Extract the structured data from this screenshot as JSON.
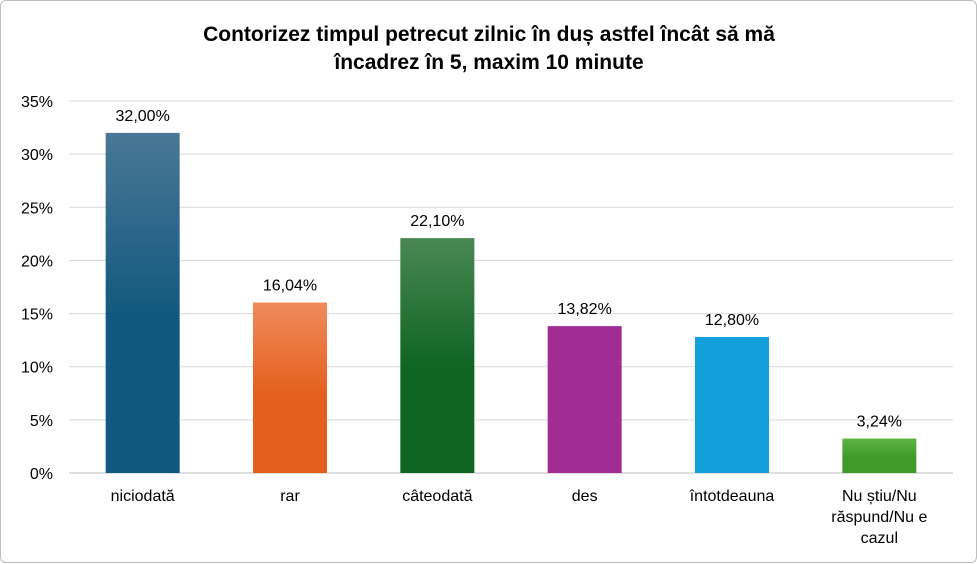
{
  "chart_data": {
    "type": "bar",
    "title_lines": [
      "Contorizez timpul petrecut zilnic în duș astfel încât să mă",
      "încadrez în 5, maxim  10 minute"
    ],
    "categories": [
      [
        "niciodată"
      ],
      [
        "rar"
      ],
      [
        "câteodată"
      ],
      [
        "des"
      ],
      [
        "întotdeauna"
      ],
      [
        "Nu știu/Nu",
        "răspund/Nu e",
        "cazul"
      ]
    ],
    "values": [
      32.0,
      16.04,
      22.1,
      13.82,
      12.8,
      3.24
    ],
    "data_labels": [
      "32,00%",
      "16,04%",
      "22,10%",
      "13,82%",
      "12,80%",
      "3,24%"
    ],
    "colors": [
      [
        "#4a7796",
        "#10587e"
      ],
      [
        "#f08a5c",
        "#e45f1c"
      ],
      [
        "#4a8754",
        "#0f6522"
      ],
      [
        "#a12c94",
        "#a12c94"
      ],
      [
        "#139fd9",
        "#139fd9"
      ],
      [
        "#5fb445",
        "#3f9a2a"
      ]
    ],
    "ylim": [
      0,
      35
    ],
    "y_ticks": [
      0,
      5,
      10,
      15,
      20,
      25,
      30,
      35
    ],
    "y_tick_labels": [
      "0%",
      "5%",
      "10%",
      "15%",
      "20%",
      "25%",
      "30%",
      "35%"
    ],
    "grid": true,
    "gridline_color": "#d9d9d9",
    "axis_color": "#bfbfbf"
  }
}
